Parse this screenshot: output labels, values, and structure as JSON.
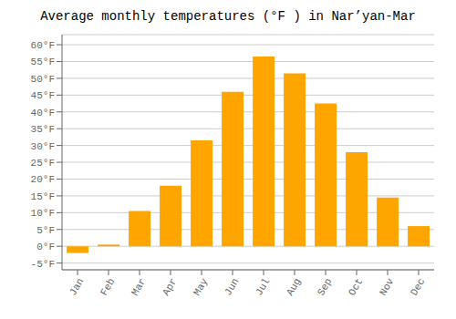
{
  "chart_data": {
    "type": "bar",
    "title": "Average monthly temperatures (°F ) in Nar’yan-Mar",
    "categories": [
      "Jan",
      "Feb",
      "Mar",
      "Apr",
      "May",
      "Jun",
      "Jul",
      "Aug",
      "Sep",
      "Oct",
      "Nov",
      "Dec"
    ],
    "values": [
      -2,
      0.5,
      10.5,
      18,
      31.5,
      46,
      56.5,
      51.5,
      42.5,
      28,
      14.5,
      6
    ],
    "color": "#FFA500",
    "ylim": [
      -7,
      63
    ],
    "yticks": [
      {
        "value": -5,
        "label": "-5°F"
      },
      {
        "value": 0,
        "label": "0°F"
      },
      {
        "value": 5,
        "label": "5°F"
      },
      {
        "value": 10,
        "label": "10°F"
      },
      {
        "value": 15,
        "label": "15°F"
      },
      {
        "value": 20,
        "label": "20°F"
      },
      {
        "value": 25,
        "label": "25°F"
      },
      {
        "value": 30,
        "label": "30°F"
      },
      {
        "value": 35,
        "label": "35°F"
      },
      {
        "value": 40,
        "label": "40°F"
      },
      {
        "value": 45,
        "label": "45°F"
      },
      {
        "value": 50,
        "label": "50°F"
      },
      {
        "value": 55,
        "label": "55°F"
      },
      {
        "value": 60,
        "label": "60°F"
      }
    ],
    "grid": true
  }
}
